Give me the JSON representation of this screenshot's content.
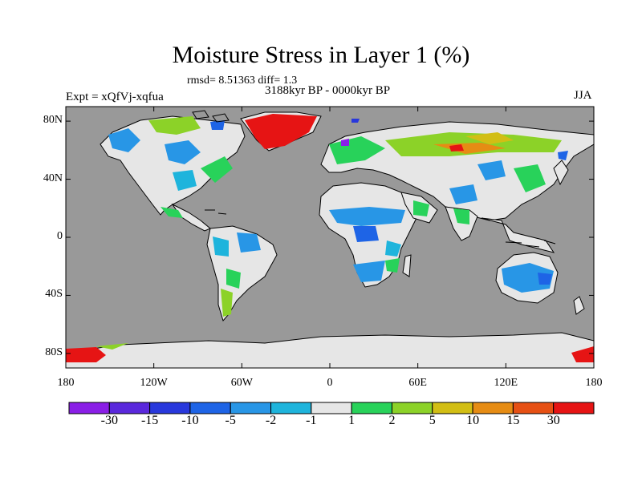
{
  "plot": {
    "title": "Moisture Stress in Layer 1 (%)",
    "stats": "rmsd= 8.51363 diff= 1.3",
    "period": "3188kyr BP - 0000kyr BP",
    "experiment": "Expt = xQfVj-xqfua",
    "season": "JJA"
  },
  "axes": {
    "y_ticks": [
      {
        "label": "80N",
        "lat": 80
      },
      {
        "label": "40N",
        "lat": 40
      },
      {
        "label": "0",
        "lat": 0
      },
      {
        "label": "40S",
        "lat": -40
      },
      {
        "label": "80S",
        "lat": -80
      }
    ],
    "x_ticks": [
      {
        "label": "180",
        "lon": -180
      },
      {
        "label": "120W",
        "lon": -120
      },
      {
        "label": "60W",
        "lon": -60
      },
      {
        "label": "0",
        "lon": 0
      },
      {
        "label": "60E",
        "lon": 60
      },
      {
        "label": "120E",
        "lon": 120
      },
      {
        "label": "180",
        "lon": 180
      }
    ],
    "lat_range": [
      -90,
      90
    ],
    "lon_range": [
      -180,
      180
    ]
  },
  "colorbar": {
    "labels": [
      "-30",
      "-15",
      "-10",
      "-5",
      "-2",
      "-1",
      "1",
      "2",
      "5",
      "10",
      "15",
      "30"
    ],
    "colors": [
      "#8a1ee6",
      "#5a28dc",
      "#2838dc",
      "#1e64e6",
      "#2896e6",
      "#1eb4dc",
      "#e6e6e6",
      "#28d25a",
      "#8cd228",
      "#d2be14",
      "#e68c14",
      "#e65014",
      "#e61414"
    ]
  },
  "colors": {
    "ocean": "#999999",
    "neutral_land": "#e6e6e6"
  }
}
